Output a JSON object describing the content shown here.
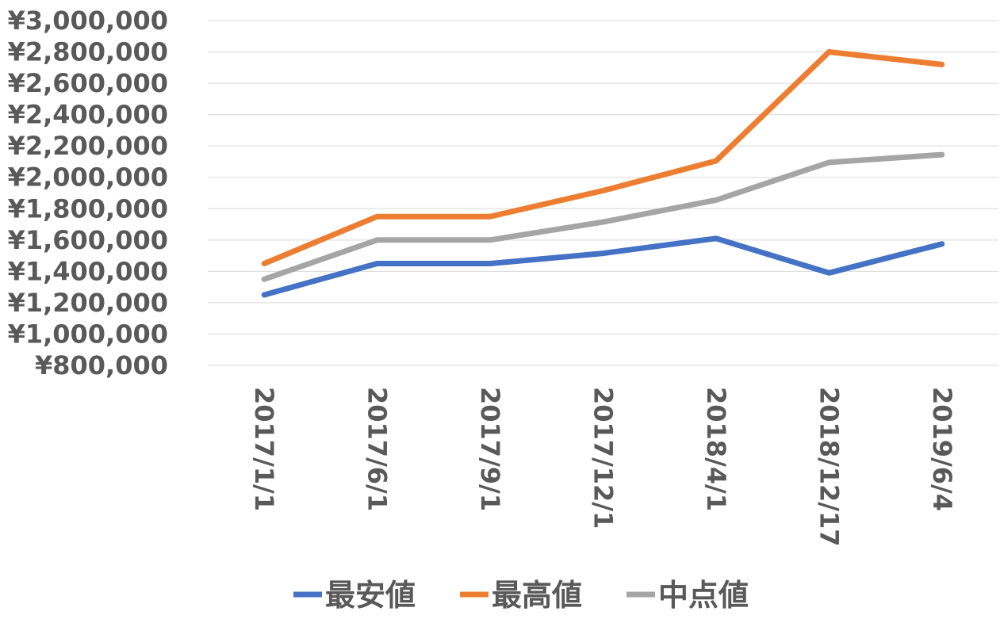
{
  "chart_data": {
    "type": "line",
    "categories": [
      "2017/1/1",
      "2017/6/1",
      "2017/9/1",
      "2017/12/1",
      "2018/4/1",
      "2018/12/17",
      "2019/6/4"
    ],
    "series": [
      {
        "name": "最安値",
        "color": "#4472c4",
        "values": [
          1250000,
          1450000,
          1450000,
          1515000,
          1610000,
          1390000,
          1575000
        ]
      },
      {
        "name": "最高値",
        "color": "#ed7d31",
        "values": [
          1450000,
          1750000,
          1750000,
          1915000,
          2105000,
          2800000,
          2720000
        ]
      },
      {
        "name": "中点値",
        "color": "#a5a5a5",
        "values": [
          1350000,
          1600000,
          1600000,
          1715000,
          1855000,
          2095000,
          2145000
        ]
      }
    ],
    "yticks": [
      "¥800,000",
      "¥1,000,000",
      "¥1,200,000",
      "¥1,400,000",
      "¥1,600,000",
      "¥1,800,000",
      "¥2,000,000",
      "¥2,200,000",
      "¥2,400,000",
      "¥2,600,000",
      "¥2,800,000",
      "¥3,000,000"
    ],
    "ylim": [
      800000,
      3000000
    ],
    "ystep": 200000,
    "grid": true,
    "legend_position": "bottom",
    "xlabel": "",
    "ylabel": "",
    "title": ""
  }
}
